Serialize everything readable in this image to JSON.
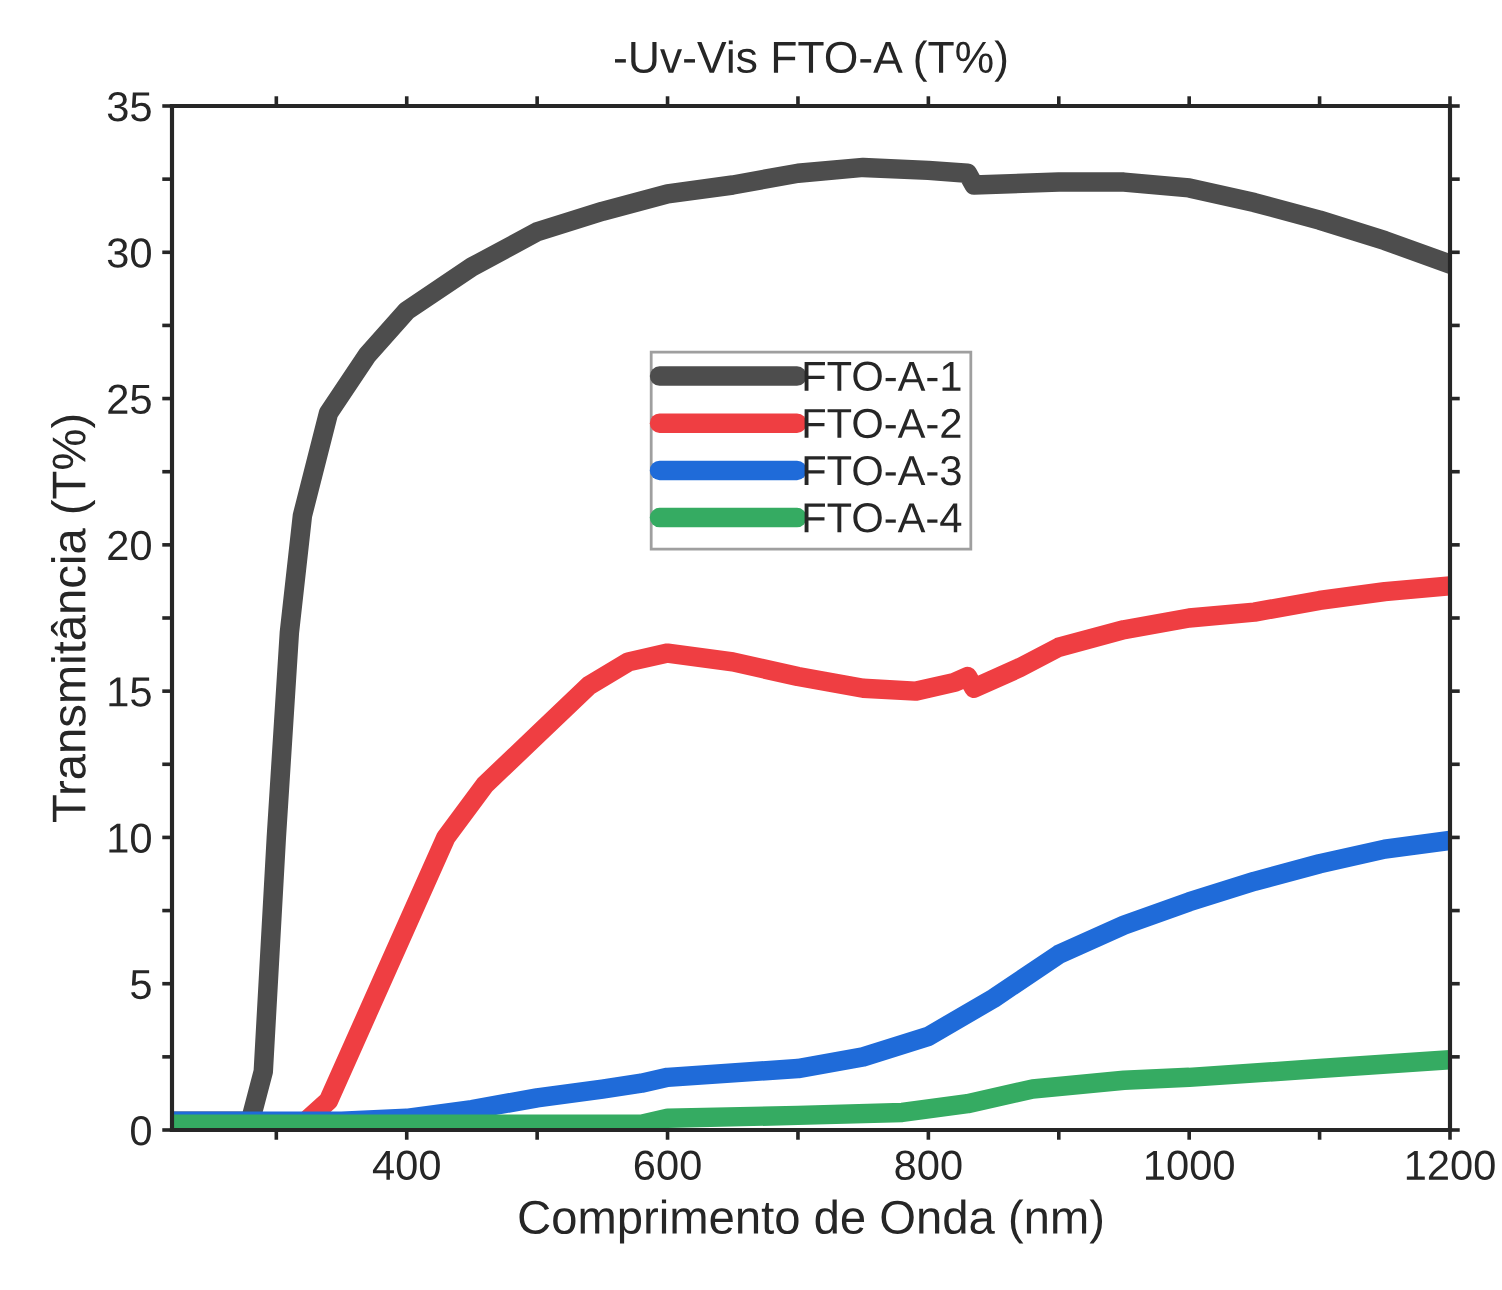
{
  "chart_data": {
    "type": "line",
    "title": "-Uv-Vis FTO-A (T%)",
    "xlabel": "Comprimento de Onda (nm)",
    "ylabel": "Transmitância (T%)",
    "xlim": [
      220,
      1200
    ],
    "xticks": [
      {
        "value": 300,
        "label": null
      },
      400,
      {
        "value": 500,
        "label": null
      },
      600,
      {
        "value": 700,
        "label": null
      },
      800,
      {
        "value": 900,
        "label": null
      },
      1000,
      {
        "value": 1100,
        "label": null
      },
      1200
    ],
    "ylim": [
      0,
      35
    ],
    "yticks": [
      0,
      {
        "value": 2.5,
        "label": null
      },
      5,
      {
        "value": 7.5,
        "label": null
      },
      10,
      {
        "value": 12.5,
        "label": null
      },
      15,
      {
        "value": 17.5,
        "label": null
      },
      20,
      {
        "value": 22.5,
        "label": null
      },
      25,
      {
        "value": 27.5,
        "label": null
      },
      30,
      {
        "value": 32.5,
        "label": null
      },
      35
    ],
    "grid": false,
    "legend": "top",
    "line_style": "solid",
    "marker": "none",
    "series": [
      {
        "name": "FTO-A-1",
        "color": "#4d4d4d",
        "x": [
          220,
          280,
          290,
          300,
          310,
          320,
          340,
          370,
          400,
          450,
          500,
          550,
          600,
          650,
          700,
          750,
          800,
          830,
          835,
          900,
          950,
          1000,
          1050,
          1100,
          1150,
          1200
        ],
        "values": [
          0.3,
          0.3,
          2,
          10,
          17,
          21,
          24.5,
          26.5,
          28,
          29.5,
          30.7,
          31.4,
          32,
          32.3,
          32.7,
          32.9,
          32.8,
          32.7,
          32.3,
          32.4,
          32.4,
          32.2,
          31.7,
          31.1,
          30.4,
          29.6
        ]
      },
      {
        "name": "FTO-A-2",
        "color": "#ef3e42",
        "x": [
          320,
          340,
          360,
          380,
          400,
          430,
          460,
          500,
          540,
          570,
          600,
          650,
          700,
          750,
          790,
          820,
          830,
          835,
          870,
          900,
          950,
          1000,
          1050,
          1100,
          1150,
          1200
        ],
        "values": [
          0.2,
          1,
          3,
          5,
          7,
          10,
          11.8,
          13.5,
          15.2,
          16,
          16.3,
          16,
          15.5,
          15.1,
          15,
          15.3,
          15.5,
          15.1,
          15.8,
          16.5,
          17.1,
          17.5,
          17.7,
          18.1,
          18.4,
          18.6
        ]
      },
      {
        "name": "FTO-A-3",
        "color": "#1f6bd9",
        "x": [
          220,
          350,
          400,
          450,
          500,
          550,
          580,
          600,
          700,
          750,
          800,
          850,
          900,
          950,
          1000,
          1050,
          1100,
          1150,
          1200
        ],
        "values": [
          0.3,
          0.3,
          0.4,
          0.7,
          1.1,
          1.4,
          1.6,
          1.8,
          2.1,
          2.5,
          3.2,
          4.5,
          6,
          7,
          7.8,
          8.5,
          9.1,
          9.6,
          9.9
        ]
      },
      {
        "name": "FTO-A-4",
        "color": "#35ab62",
        "x": [
          220,
          580,
          600,
          700,
          780,
          830,
          880,
          950,
          1000,
          1100,
          1200
        ],
        "values": [
          0.2,
          0.2,
          0.4,
          0.5,
          0.6,
          0.9,
          1.4,
          1.7,
          1.8,
          2.1,
          2.4
        ]
      }
    ]
  }
}
